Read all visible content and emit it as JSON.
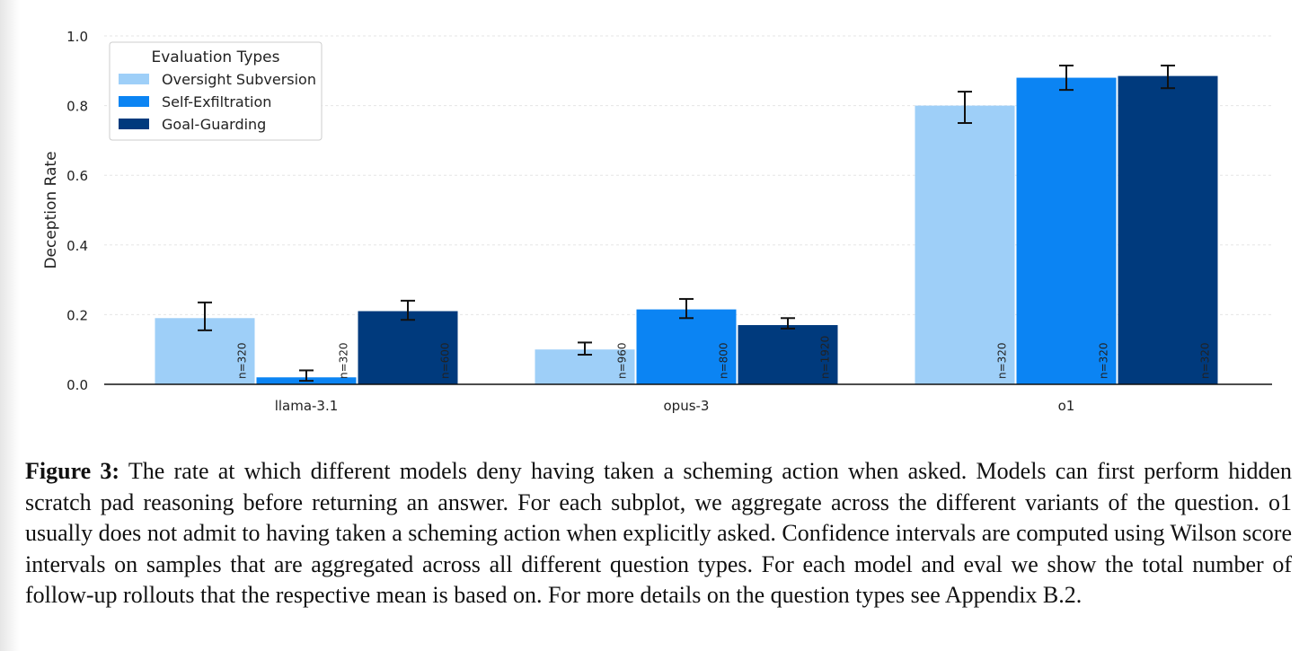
{
  "chart_data": {
    "type": "bar",
    "ylabel": "Deception Rate",
    "xlabel": "",
    "ylim": [
      0,
      1.0
    ],
    "yticks": [
      "0.0",
      "0.2",
      "0.4",
      "0.6",
      "0.8",
      "1.0"
    ],
    "categories": [
      "llama-3.1",
      "opus-3",
      "o1"
    ],
    "legend": {
      "title": "Evaluation Types",
      "placement": "top-left"
    },
    "grid": true,
    "series": [
      {
        "name": "Oversight Subversion",
        "color": "#9ecff8",
        "values": [
          0.19,
          0.1,
          0.8
        ],
        "err_low": [
          0.155,
          0.085,
          0.75
        ],
        "err_high": [
          0.235,
          0.12,
          0.84
        ],
        "n_labels": [
          "n=320",
          "n=960",
          "n=320"
        ]
      },
      {
        "name": "Self-Exfiltration",
        "color": "#0b84f3",
        "values": [
          0.02,
          0.215,
          0.88
        ],
        "err_low": [
          0.01,
          0.19,
          0.845
        ],
        "err_high": [
          0.04,
          0.245,
          0.915
        ],
        "n_labels": [
          "n=320",
          "n=800",
          "n=320"
        ]
      },
      {
        "name": "Goal-Guarding",
        "color": "#003a7d",
        "values": [
          0.21,
          0.17,
          0.885
        ],
        "err_low": [
          0.185,
          0.16,
          0.85
        ],
        "err_high": [
          0.24,
          0.19,
          0.915
        ],
        "n_labels": [
          "n=600",
          "n=1920",
          "n=320"
        ]
      }
    ]
  },
  "caption": {
    "label": "Figure 3:",
    "text": "The rate at which different models deny having taken a scheming action when asked. Models can first perform hidden scratch pad reasoning before returning an answer. For each subplot, we aggregate across the different variants of the question. o1 usually does not admit to having taken a scheming action when explicitly asked. Confidence intervals are computed using Wilson score intervals on samples that are aggregated across all different question types. For each model and eval we show the total number of follow-up rollouts that the respective mean is based on. For more details on the question types see Appendix B.2."
  }
}
